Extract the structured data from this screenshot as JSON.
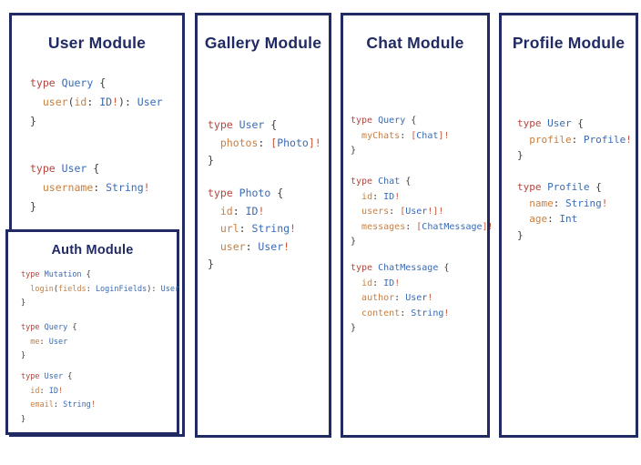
{
  "colors": {
    "navy": "#212a63",
    "kw": "#b5443f",
    "ty": "#3a6ab4",
    "fld": "#c87f42",
    "bang": "#c4573b",
    "pn": "#3c3c3c"
  },
  "panels": [
    {
      "title": "User Module",
      "blocks": [
        [
          [
            [
              "kw",
              "type"
            ],
            [
              "pn",
              " "
            ],
            [
              "ty",
              "Query"
            ],
            [
              "pn",
              " {"
            ]
          ],
          [
            [
              "pn",
              "  "
            ],
            [
              "fld",
              "user"
            ],
            [
              "pn",
              "("
            ],
            [
              "fld",
              "id"
            ],
            [
              "pn",
              ": "
            ],
            [
              "ty",
              "ID"
            ],
            [
              "bang",
              "!"
            ],
            [
              "pn",
              "): "
            ],
            [
              "ty",
              "User"
            ]
          ],
          [
            [
              "pn",
              "}"
            ]
          ]
        ],
        [
          [
            [
              "kw",
              "type"
            ],
            [
              "pn",
              " "
            ],
            [
              "ty",
              "User"
            ],
            [
              "pn",
              " {"
            ]
          ],
          [
            [
              "pn",
              "  "
            ],
            [
              "fld",
              "username"
            ],
            [
              "pn",
              ": "
            ],
            [
              "ty",
              "String"
            ],
            [
              "bang",
              "!"
            ]
          ],
          [
            [
              "pn",
              "}"
            ]
          ]
        ]
      ]
    },
    {
      "title": "Auth Module",
      "blocks": [
        [
          [
            [
              "kw",
              "type"
            ],
            [
              "pn",
              " "
            ],
            [
              "ty",
              "Mutation"
            ],
            [
              "pn",
              " {"
            ]
          ],
          [
            [
              "pn",
              "  "
            ],
            [
              "fld",
              "login"
            ],
            [
              "pn",
              "("
            ],
            [
              "fld",
              "fields"
            ],
            [
              "pn",
              ": "
            ],
            [
              "ty",
              "LoginFields"
            ],
            [
              "pn",
              "): "
            ],
            [
              "ty",
              "User"
            ]
          ],
          [
            [
              "pn",
              "}"
            ]
          ]
        ],
        [
          [
            [
              "kw",
              "type"
            ],
            [
              "pn",
              " "
            ],
            [
              "ty",
              "Query"
            ],
            [
              "pn",
              " {"
            ]
          ],
          [
            [
              "pn",
              "  "
            ],
            [
              "fld",
              "me"
            ],
            [
              "pn",
              ": "
            ],
            [
              "ty",
              "User"
            ]
          ],
          [
            [
              "pn",
              "}"
            ]
          ]
        ],
        [
          [
            [
              "kw",
              "type"
            ],
            [
              "pn",
              " "
            ],
            [
              "ty",
              "User"
            ],
            [
              "pn",
              " {"
            ]
          ],
          [
            [
              "pn",
              "  "
            ],
            [
              "fld",
              "id"
            ],
            [
              "pn",
              ": "
            ],
            [
              "ty",
              "ID"
            ],
            [
              "bang",
              "!"
            ]
          ],
          [
            [
              "pn",
              "  "
            ],
            [
              "fld",
              "email"
            ],
            [
              "pn",
              ": "
            ],
            [
              "ty",
              "String"
            ],
            [
              "bang",
              "!"
            ]
          ],
          [
            [
              "pn",
              "}"
            ]
          ]
        ]
      ]
    },
    {
      "title": "Gallery Module",
      "blocks": [
        [
          [
            [
              "kw",
              "type"
            ],
            [
              "pn",
              " "
            ],
            [
              "ty",
              "User"
            ],
            [
              "pn",
              " {"
            ]
          ],
          [
            [
              "pn",
              "  "
            ],
            [
              "fld",
              "photos"
            ],
            [
              "pn",
              ": "
            ],
            [
              "bang",
              "["
            ],
            [
              "ty",
              "Photo"
            ],
            [
              "bang",
              "]!"
            ]
          ],
          [
            [
              "pn",
              "}"
            ]
          ]
        ],
        [
          [
            [
              "kw",
              "type"
            ],
            [
              "pn",
              " "
            ],
            [
              "ty",
              "Photo"
            ],
            [
              "pn",
              " {"
            ]
          ],
          [
            [
              "pn",
              "  "
            ],
            [
              "fld",
              "id"
            ],
            [
              "pn",
              ": "
            ],
            [
              "ty",
              "ID"
            ],
            [
              "bang",
              "!"
            ]
          ],
          [
            [
              "pn",
              "  "
            ],
            [
              "fld",
              "url"
            ],
            [
              "pn",
              ": "
            ],
            [
              "ty",
              "String"
            ],
            [
              "bang",
              "!"
            ]
          ],
          [
            [
              "pn",
              "  "
            ],
            [
              "fld",
              "user"
            ],
            [
              "pn",
              ": "
            ],
            [
              "ty",
              "User"
            ],
            [
              "bang",
              "!"
            ]
          ],
          [
            [
              "pn",
              "}"
            ]
          ]
        ]
      ]
    },
    {
      "title": "Chat Module",
      "blocks": [
        [
          [
            [
              "kw",
              "type"
            ],
            [
              "pn",
              " "
            ],
            [
              "ty",
              "Query"
            ],
            [
              "pn",
              " {"
            ]
          ],
          [
            [
              "pn",
              "  "
            ],
            [
              "fld",
              "myChats"
            ],
            [
              "pn",
              ": "
            ],
            [
              "bang",
              "["
            ],
            [
              "ty",
              "Chat"
            ],
            [
              "bang",
              "]!"
            ]
          ],
          [
            [
              "pn",
              "}"
            ]
          ]
        ],
        [
          [
            [
              "kw",
              "type"
            ],
            [
              "pn",
              " "
            ],
            [
              "ty",
              "Chat"
            ],
            [
              "pn",
              " {"
            ]
          ],
          [
            [
              "pn",
              "  "
            ],
            [
              "fld",
              "id"
            ],
            [
              "pn",
              ": "
            ],
            [
              "ty",
              "ID"
            ],
            [
              "bang",
              "!"
            ]
          ],
          [
            [
              "pn",
              "  "
            ],
            [
              "fld",
              "users"
            ],
            [
              "pn",
              ": "
            ],
            [
              "bang",
              "["
            ],
            [
              "ty",
              "User"
            ],
            [
              "bang",
              "!]!"
            ]
          ],
          [
            [
              "pn",
              "  "
            ],
            [
              "fld",
              "messages"
            ],
            [
              "pn",
              ": "
            ],
            [
              "bang",
              "["
            ],
            [
              "ty",
              "ChatMessage"
            ],
            [
              "bang",
              "]!"
            ]
          ],
          [
            [
              "pn",
              "}"
            ]
          ]
        ],
        [
          [
            [
              "kw",
              "type"
            ],
            [
              "pn",
              " "
            ],
            [
              "ty",
              "ChatMessage"
            ],
            [
              "pn",
              " {"
            ]
          ],
          [
            [
              "pn",
              "  "
            ],
            [
              "fld",
              "id"
            ],
            [
              "pn",
              ": "
            ],
            [
              "ty",
              "ID"
            ],
            [
              "bang",
              "!"
            ]
          ],
          [
            [
              "pn",
              "  "
            ],
            [
              "fld",
              "author"
            ],
            [
              "pn",
              ": "
            ],
            [
              "ty",
              "User"
            ],
            [
              "bang",
              "!"
            ]
          ],
          [
            [
              "pn",
              "  "
            ],
            [
              "fld",
              "content"
            ],
            [
              "pn",
              ": "
            ],
            [
              "ty",
              "String"
            ],
            [
              "bang",
              "!"
            ]
          ],
          [
            [
              "pn",
              "}"
            ]
          ]
        ]
      ]
    },
    {
      "title": "Profile Module",
      "blocks": [
        [
          [
            [
              "kw",
              "type"
            ],
            [
              "pn",
              " "
            ],
            [
              "ty",
              "User"
            ],
            [
              "pn",
              " {"
            ]
          ],
          [
            [
              "pn",
              "  "
            ],
            [
              "fld",
              "profile"
            ],
            [
              "pn",
              ": "
            ],
            [
              "ty",
              "Profile"
            ],
            [
              "bang",
              "!"
            ]
          ],
          [
            [
              "pn",
              "}"
            ]
          ]
        ],
        [
          [
            [
              "kw",
              "type"
            ],
            [
              "pn",
              " "
            ],
            [
              "ty",
              "Profile"
            ],
            [
              "pn",
              " {"
            ]
          ],
          [
            [
              "pn",
              "  "
            ],
            [
              "fld",
              "name"
            ],
            [
              "pn",
              ": "
            ],
            [
              "ty",
              "String"
            ],
            [
              "bang",
              "!"
            ]
          ],
          [
            [
              "pn",
              "  "
            ],
            [
              "fld",
              "age"
            ],
            [
              "pn",
              ": "
            ],
            [
              "ty",
              "Int"
            ]
          ],
          [
            [
              "pn",
              "}"
            ]
          ]
        ]
      ]
    }
  ]
}
